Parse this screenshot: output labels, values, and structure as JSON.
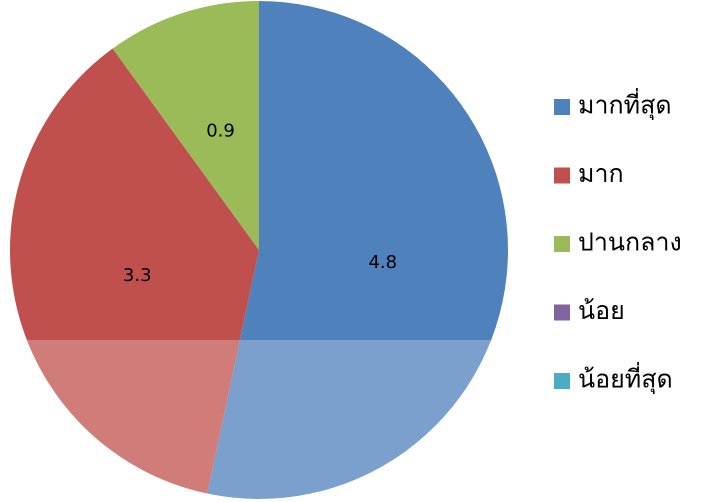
{
  "chart_data": {
    "type": "pie",
    "categories": [
      "มากที่สุด",
      "มาก",
      "ปานกลาง",
      "น้อย",
      "น้อยที่สุด"
    ],
    "values": [
      4.8,
      3.3,
      0.9,
      0,
      0
    ],
    "colors": [
      "#4f81bd",
      "#c0504d",
      "#9bbb59",
      "#8064a2",
      "#4bacc6"
    ],
    "legend": "right"
  }
}
